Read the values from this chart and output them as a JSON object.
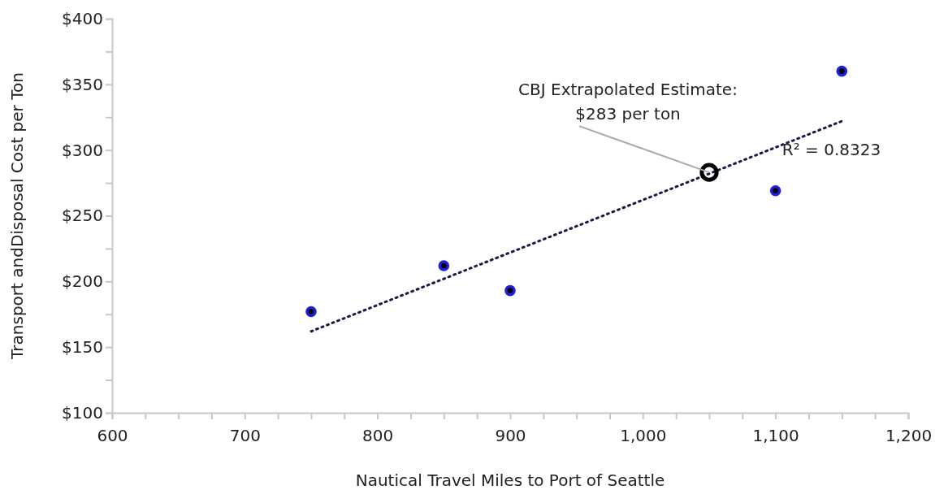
{
  "chart_data": {
    "type": "scatter",
    "xlabel": "Nautical Travel Miles to Port of Seattle",
    "ylabel": "Transport andDisposal Cost per Ton",
    "xlim": [
      600,
      1200
    ],
    "ylim": [
      100,
      400
    ],
    "xticks": [
      {
        "value": 600,
        "label": "600"
      },
      {
        "value": 625,
        "label": null
      },
      {
        "value": 650,
        "label": null
      },
      {
        "value": 675,
        "label": null
      },
      {
        "value": 700,
        "label": "700"
      },
      {
        "value": 725,
        "label": null
      },
      {
        "value": 750,
        "label": null
      },
      {
        "value": 775,
        "label": null
      },
      {
        "value": 800,
        "label": "800"
      },
      {
        "value": 825,
        "label": null
      },
      {
        "value": 850,
        "label": null
      },
      {
        "value": 875,
        "label": null
      },
      {
        "value": 900,
        "label": "900"
      },
      {
        "value": 925,
        "label": null
      },
      {
        "value": 950,
        "label": null
      },
      {
        "value": 975,
        "label": null
      },
      {
        "value": 1000,
        "label": "1,000"
      },
      {
        "value": 1025,
        "label": null
      },
      {
        "value": 1050,
        "label": null
      },
      {
        "value": 1075,
        "label": null
      },
      {
        "value": 1100,
        "label": "1,100"
      },
      {
        "value": 1125,
        "label": null
      },
      {
        "value": 1150,
        "label": null
      },
      {
        "value": 1175,
        "label": null
      },
      {
        "value": 1200,
        "label": "1,200"
      }
    ],
    "yticks": [
      {
        "value": 100,
        "label": "$100"
      },
      {
        "value": 125,
        "label": null
      },
      {
        "value": 150,
        "label": "$150"
      },
      {
        "value": 175,
        "label": null
      },
      {
        "value": 200,
        "label": "$200"
      },
      {
        "value": 225,
        "label": null
      },
      {
        "value": 250,
        "label": "$250"
      },
      {
        "value": 275,
        "label": null
      },
      {
        "value": 300,
        "label": "$300"
      },
      {
        "value": 325,
        "label": null
      },
      {
        "value": 350,
        "label": "$350"
      },
      {
        "value": 375,
        "label": null
      },
      {
        "value": 400,
        "label": "$400"
      }
    ],
    "grid": false,
    "marker": "circle",
    "series": [
      {
        "color": "#1f1fe0",
        "x": [
          750,
          850,
          900,
          1100,
          1150
        ],
        "values": [
          177,
          212,
          193,
          269,
          360
        ]
      },
      {
        "type": "line",
        "color": "#1a1a4a",
        "line_style": "dotted",
        "marker": "none",
        "x": [
          750,
          1150
        ],
        "values": [
          162,
          322
        ]
      },
      {
        "color": "#000000",
        "x": [
          1050
        ],
        "values": [
          283
        ]
      }
    ],
    "annotations": [
      {
        "text": "CBJ  Extrapolated Estimate:\n$283 per ton",
        "x": 1050,
        "y": 283
      },
      "R² = 0.8323"
    ]
  }
}
